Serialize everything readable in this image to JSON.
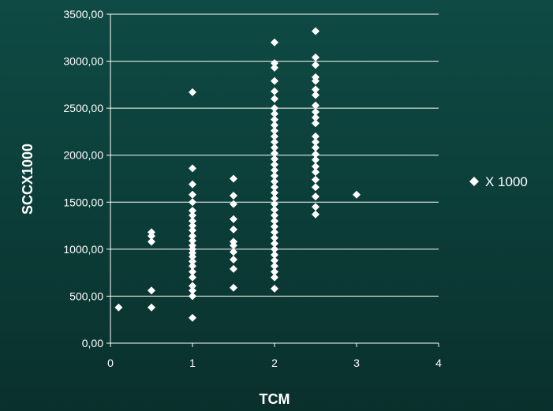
{
  "chart_data": {
    "type": "scatter",
    "xlabel": "TCM",
    "ylabel": "SCCX1000",
    "xlim": [
      0,
      4
    ],
    "ylim": [
      0,
      3500
    ],
    "x_ticks": [
      "0",
      "1",
      "2",
      "3",
      "4"
    ],
    "y_ticks": [
      "0,00",
      "500,00",
      "1000,00",
      "1500,00",
      "2000,00",
      "2500,00",
      "3000,00",
      "3500,00"
    ],
    "grid": "horizontal",
    "legend_position": "right",
    "marker_color": "#ffffff",
    "series": [
      {
        "name": "X 1000",
        "marker": "diamond",
        "points": [
          [
            0.1,
            380
          ],
          [
            0.5,
            380
          ],
          [
            0.5,
            560
          ],
          [
            0.5,
            1080
          ],
          [
            0.5,
            1140
          ],
          [
            0.5,
            1180
          ],
          [
            1,
            270
          ],
          [
            1,
            500
          ],
          [
            1,
            560
          ],
          [
            1,
            610
          ],
          [
            1,
            700
          ],
          [
            1,
            760
          ],
          [
            1,
            820
          ],
          [
            1,
            870
          ],
          [
            1,
            920
          ],
          [
            1,
            960
          ],
          [
            1,
            1000
          ],
          [
            1,
            1040
          ],
          [
            1,
            1090
          ],
          [
            1,
            1140
          ],
          [
            1,
            1200
          ],
          [
            1,
            1250
          ],
          [
            1,
            1300
          ],
          [
            1,
            1360
          ],
          [
            1,
            1410
          ],
          [
            1,
            1500
          ],
          [
            1,
            1580
          ],
          [
            1,
            1690
          ],
          [
            1,
            1860
          ],
          [
            1,
            2670
          ],
          [
            1.5,
            590
          ],
          [
            1.5,
            790
          ],
          [
            1.5,
            890
          ],
          [
            1.5,
            970
          ],
          [
            1.5,
            1040
          ],
          [
            1.5,
            1080
          ],
          [
            1.5,
            1210
          ],
          [
            1.5,
            1320
          ],
          [
            1.5,
            1480
          ],
          [
            1.5,
            1570
          ],
          [
            1.5,
            1750
          ],
          [
            2,
            580
          ],
          [
            2,
            700
          ],
          [
            2,
            760
          ],
          [
            2,
            820
          ],
          [
            2,
            880
          ],
          [
            2,
            940
          ],
          [
            2,
            1000
          ],
          [
            2,
            1060
          ],
          [
            2,
            1120
          ],
          [
            2,
            1180
          ],
          [
            2,
            1240
          ],
          [
            2,
            1300
          ],
          [
            2,
            1360
          ],
          [
            2,
            1420
          ],
          [
            2,
            1480
          ],
          [
            2,
            1540
          ],
          [
            2,
            1600
          ],
          [
            2,
            1660
          ],
          [
            2,
            1720
          ],
          [
            2,
            1780
          ],
          [
            2,
            1840
          ],
          [
            2,
            1900
          ],
          [
            2,
            1960
          ],
          [
            2,
            2020
          ],
          [
            2,
            2080
          ],
          [
            2,
            2140
          ],
          [
            2,
            2200
          ],
          [
            2,
            2260
          ],
          [
            2,
            2320
          ],
          [
            2,
            2380
          ],
          [
            2,
            2440
          ],
          [
            2,
            2500
          ],
          [
            2,
            2600
          ],
          [
            2,
            2680
          ],
          [
            2,
            2790
          ],
          [
            2,
            2930
          ],
          [
            2,
            2980
          ],
          [
            2,
            3200
          ],
          [
            2.5,
            1370
          ],
          [
            2.5,
            1450
          ],
          [
            2.5,
            1560
          ],
          [
            2.5,
            1660
          ],
          [
            2.5,
            1740
          ],
          [
            2.5,
            1820
          ],
          [
            2.5,
            1880
          ],
          [
            2.5,
            1950
          ],
          [
            2.5,
            2010
          ],
          [
            2.5,
            2080
          ],
          [
            2.5,
            2140
          ],
          [
            2.5,
            2200
          ],
          [
            2.5,
            2340
          ],
          [
            2.5,
            2400
          ],
          [
            2.5,
            2460
          ],
          [
            2.5,
            2530
          ],
          [
            2.5,
            2640
          ],
          [
            2.5,
            2700
          ],
          [
            2.5,
            2790
          ],
          [
            2.5,
            2830
          ],
          [
            2.5,
            2960
          ],
          [
            2.5,
            3040
          ],
          [
            2.5,
            3320
          ],
          [
            3,
            1580
          ]
        ]
      }
    ]
  }
}
